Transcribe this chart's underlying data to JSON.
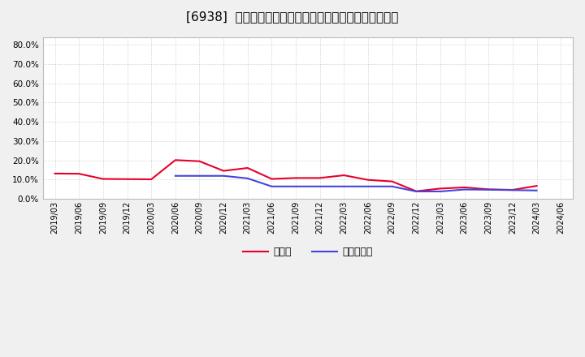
{
  "title": "[6938]  現預金、有利子負債の総資産に対する比率の推移",
  "x_labels": [
    "2019/03",
    "2019/06",
    "2019/09",
    "2019/12",
    "2020/03",
    "2020/06",
    "2020/09",
    "2020/12",
    "2021/03",
    "2021/06",
    "2021/09",
    "2021/12",
    "2022/03",
    "2022/06",
    "2022/09",
    "2022/12",
    "2023/03",
    "2023/06",
    "2023/09",
    "2023/12",
    "2024/03",
    "2024/06"
  ],
  "cash_ratio": [
    0.131,
    0.13,
    0.103,
    0.102,
    0.101,
    0.201,
    0.195,
    0.145,
    0.16,
    0.103,
    0.108,
    0.108,
    0.122,
    0.098,
    0.09,
    0.039,
    0.053,
    0.059,
    0.049,
    0.046,
    0.067,
    null
  ],
  "debt_ratio": [
    null,
    null,
    null,
    null,
    null,
    0.119,
    0.119,
    0.119,
    0.106,
    0.064,
    0.064,
    0.064,
    0.064,
    0.064,
    0.064,
    0.038,
    0.038,
    0.048,
    0.047,
    0.045,
    0.043,
    null
  ],
  "cash_color": "#e8002a",
  "debt_color": "#4444dd",
  "bg_color": "#f0f0f0",
  "plot_bg_color": "#ffffff",
  "grid_color": "#999999",
  "ylim": [
    0.0,
    0.84
  ],
  "yticks": [
    0.0,
    0.1,
    0.2,
    0.3,
    0.4,
    0.5,
    0.6,
    0.7,
    0.8
  ],
  "legend_cash": "現預金",
  "legend_debt": "有利子負債",
  "title_fontsize": 11,
  "tick_fontsize": 7.5,
  "legend_fontsize": 9
}
